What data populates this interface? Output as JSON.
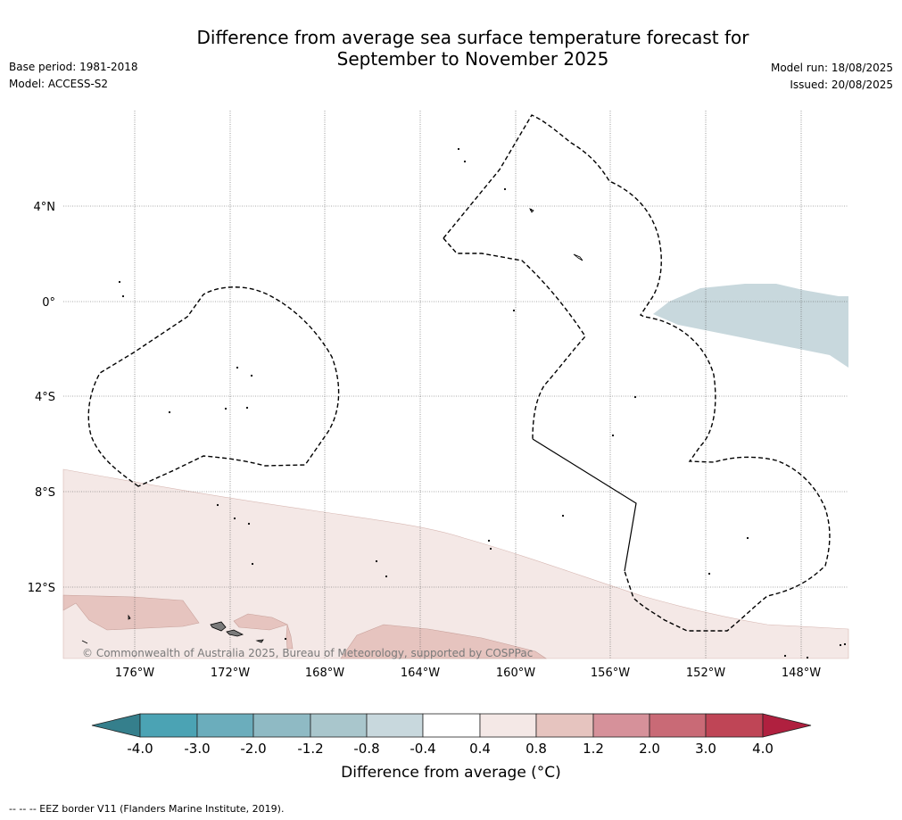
{
  "header": {
    "title_line1": "Difference from average sea surface temperature forecast for",
    "title_line2": "September to November 2025",
    "base_period": "Base period: 1981-2018",
    "model": "Model: ACCESS-S2",
    "model_run": "Model run: 18/08/2025",
    "issued": "Issued: 20/08/2025"
  },
  "map": {
    "lat_labels": [
      "4°N",
      "0°",
      "4°S",
      "8°S",
      "12°S"
    ],
    "lon_labels": [
      "176°W",
      "172°W",
      "168°W",
      "164°W",
      "160°W",
      "156°W",
      "152°W",
      "148°W"
    ],
    "copyright": "© Commonwealth of Australia 2025, Bureau of Meteorology, supported by COSPPac",
    "colors": {
      "anomaly_0_4_to_0_8": "#f4e8e6",
      "anomaly_0_8_to_1_2": "#e6c4bf",
      "anomaly_neg0_8_to_neg0_4": "#c8d8dd",
      "land": "#888888",
      "eez_border": "#000000"
    }
  },
  "colorbar": {
    "title": "Difference from average (°C)",
    "ticks": [
      "-4.0",
      "-3.0",
      "-2.0",
      "-1.2",
      "-0.8",
      "-0.4",
      "0.4",
      "0.8",
      "1.2",
      "2.0",
      "3.0",
      "4.0"
    ],
    "colors": [
      "#4ba3b4",
      "#6badbc",
      "#8fbac4",
      "#a9c6cc",
      "#c8d8dd",
      "#ffffff",
      "#f4e8e6",
      "#e6c4bf",
      "#d6919a",
      "#c96a76",
      "#bf4556"
    ],
    "under_color": "#357f8c",
    "over_color": "#b0203f"
  },
  "footer": {
    "legend": "--  --  -- EEZ border V11 (Flanders Marine Institute, 2019)."
  }
}
